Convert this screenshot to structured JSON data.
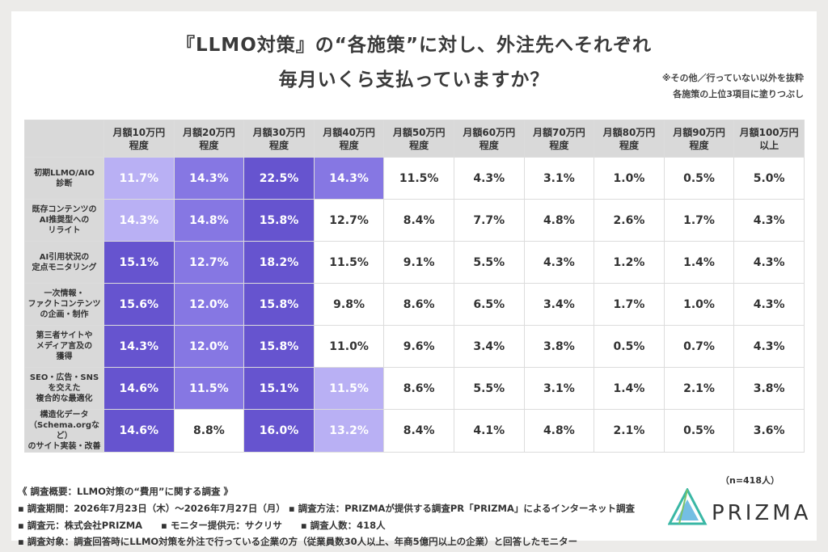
{
  "title": {
    "line1": "『LLMO対策』の“各施策”に対し、外注先へそれぞれ",
    "line2": "毎月いくら支払っていますか？"
  },
  "note": {
    "line1": "※その他／行っていない以外を抜粋",
    "line2": "各施策の上位3項目に塗りつぶし"
  },
  "colors": {
    "rank1": "#6654cf",
    "rank2": "#8677e3",
    "rank3": "#b9b0f4",
    "header_bg": "#d9d9d9"
  },
  "chart_data": {
    "type": "table",
    "columns": [
      [
        "月額10万円",
        "程度"
      ],
      [
        "月額20万円",
        "程度"
      ],
      [
        "月額30万円",
        "程度"
      ],
      [
        "月額40万円",
        "程度"
      ],
      [
        "月額50万円",
        "程度"
      ],
      [
        "月額60万円",
        "程度"
      ],
      [
        "月額70万円",
        "程度"
      ],
      [
        "月額80万円",
        "程度"
      ],
      [
        "月額90万円",
        "程度"
      ],
      [
        "月額100万円",
        "以上"
      ]
    ],
    "rows": [
      {
        "label": [
          "初期LLMO/AIO",
          "診断"
        ],
        "values": [
          "11.7%",
          "14.3%",
          "22.5%",
          "14.3%",
          "11.5%",
          "4.3%",
          "3.1%",
          "1.0%",
          "0.5%",
          "5.0%"
        ],
        "highlight": [
          3,
          2,
          1,
          2,
          0,
          0,
          0,
          0,
          0,
          0
        ]
      },
      {
        "label": [
          "既存コンテンツの",
          "AI推奨型への",
          "リライト"
        ],
        "values": [
          "14.3%",
          "14.8%",
          "15.8%",
          "12.7%",
          "8.4%",
          "7.7%",
          "4.8%",
          "2.6%",
          "1.7%",
          "4.3%"
        ],
        "highlight": [
          3,
          2,
          1,
          0,
          0,
          0,
          0,
          0,
          0,
          0
        ]
      },
      {
        "label": [
          "AI引用状況の",
          "定点モニタリング"
        ],
        "values": [
          "15.1%",
          "12.7%",
          "18.2%",
          "11.5%",
          "9.1%",
          "5.5%",
          "4.3%",
          "1.2%",
          "1.4%",
          "4.3%"
        ],
        "highlight": [
          1,
          2,
          1,
          0,
          0,
          0,
          0,
          0,
          0,
          0
        ]
      },
      {
        "label": [
          "一次情報・",
          "ファクトコンテンツ",
          "の企画・制作"
        ],
        "values": [
          "15.6%",
          "12.0%",
          "15.8%",
          "9.8%",
          "8.6%",
          "6.5%",
          "3.4%",
          "1.7%",
          "1.0%",
          "4.3%"
        ],
        "highlight": [
          1,
          2,
          1,
          0,
          0,
          0,
          0,
          0,
          0,
          0
        ]
      },
      {
        "label": [
          "第三者サイトや",
          "メディア言及の",
          "獲得"
        ],
        "values": [
          "14.3%",
          "12.0%",
          "15.8%",
          "11.0%",
          "9.6%",
          "3.4%",
          "3.8%",
          "0.5%",
          "0.7%",
          "4.3%"
        ],
        "highlight": [
          1,
          2,
          1,
          0,
          0,
          0,
          0,
          0,
          0,
          0
        ]
      },
      {
        "label": [
          "SEO・広告・SNS",
          "を交えた",
          "複合的な最適化"
        ],
        "values": [
          "14.6%",
          "11.5%",
          "15.1%",
          "11.5%",
          "8.6%",
          "5.5%",
          "3.1%",
          "1.4%",
          "2.1%",
          "3.8%"
        ],
        "highlight": [
          1,
          2,
          1,
          3,
          0,
          0,
          0,
          0,
          0,
          0
        ]
      },
      {
        "label": [
          "構造化データ",
          "（Schema.orgなど）",
          "のサイト実装・改善"
        ],
        "values": [
          "14.6%",
          "8.8%",
          "16.0%",
          "13.2%",
          "8.4%",
          "4.1%",
          "4.8%",
          "2.1%",
          "0.5%",
          "3.6%"
        ],
        "highlight": [
          1,
          0,
          1,
          3,
          0,
          0,
          0,
          0,
          0,
          0
        ]
      }
    ]
  },
  "footer": {
    "sample": "（n=418人）",
    "survey_title": "《 調査概要：LLMO対策の“費用”に関する調査 》",
    "line1": "▪ 調査期間：2026年7月23日（木）〜2026年7月27日（月） ▪ 調査方法：PRIZMAが提供する調査PR「PRIZMA」によるインターネット調査",
    "line2": "▪ 調査元：株式会社PRIZMA　　▪ モニター提供元：サクリサ　　▪ 調査人数：418人",
    "line3": "▪ 調査対象：調査回答時にLLMO対策を外注で行っている企業の方（従業員数30人以上、年商5億円以上の企業）と回答したモニター",
    "logo_text": "PRIZMA"
  }
}
